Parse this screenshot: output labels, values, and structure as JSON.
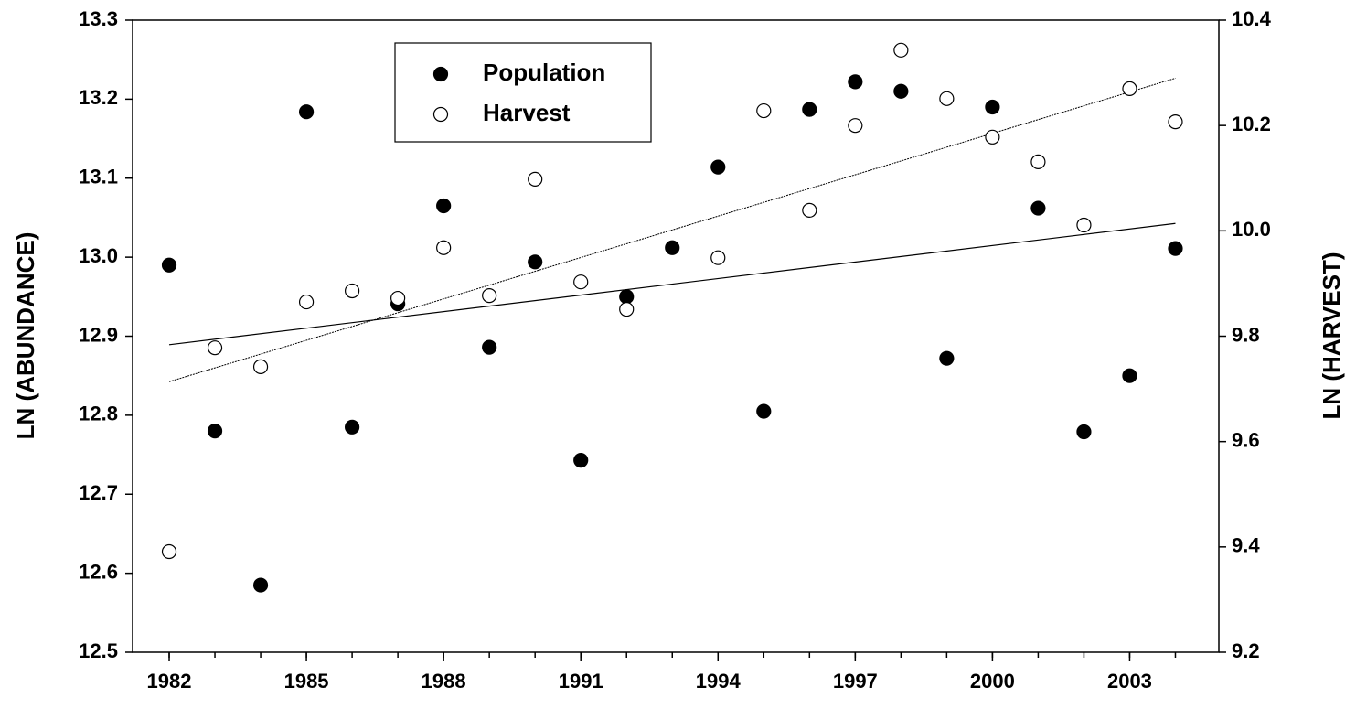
{
  "chart_data": {
    "type": "scatter",
    "x": [
      1982,
      1983,
      1984,
      1985,
      1986,
      1987,
      1988,
      1989,
      1990,
      1991,
      1992,
      1993,
      1994,
      1995,
      1996,
      1997,
      1998,
      1999,
      2000,
      2001,
      2002,
      2003,
      2004
    ],
    "series": [
      {
        "name": "Population",
        "color": "#000000",
        "fill": "#000000",
        "axis": "y",
        "values": [
          12.99,
          12.78,
          12.585,
          13.184,
          12.785,
          12.941,
          13.065,
          12.886,
          12.994,
          12.743,
          12.95,
          13.012,
          13.114,
          12.805,
          13.187,
          13.222,
          13.21,
          12.872,
          13.19,
          13.062,
          12.779,
          12.85,
          13.011
        ]
      },
      {
        "name": "Harvest",
        "color": "#000000",
        "fill": "#ffffff",
        "axis": "y2",
        "values": [
          9.391,
          9.778,
          9.742,
          9.865,
          9.886,
          9.872,
          9.968,
          9.877,
          10.098,
          9.903,
          9.851,
          null,
          9.949,
          10.228,
          10.039,
          10.2,
          10.343,
          10.251,
          10.178,
          10.131,
          10.011,
          10.27,
          10.207
        ]
      }
    ],
    "trend_lines": true,
    "ylabel": "LN (ABUNDANCE)",
    "y2label": "LN (HARVEST)",
    "xlim": [
      1981.2,
      2004.95
    ],
    "xticks": [
      1982,
      1985,
      1988,
      1991,
      1994,
      1997,
      2000,
      2003
    ],
    "ylim": [
      12.5,
      13.3
    ],
    "yticks": [
      {
        "value": 12.5,
        "label": "12.5"
      },
      {
        "value": 12.6,
        "label": "12.6"
      },
      {
        "value": 12.7,
        "label": "12.7"
      },
      {
        "value": 12.8,
        "label": "12.8"
      },
      {
        "value": 12.9,
        "label": "12.9"
      },
      {
        "value": 13.0,
        "label": "13.0"
      },
      {
        "value": 13.1,
        "label": "13.1"
      },
      {
        "value": 13.2,
        "label": "13.2"
      },
      {
        "value": 13.3,
        "label": "13.3"
      }
    ],
    "y2lim": [
      9.2,
      10.4
    ],
    "y2ticks": [
      {
        "value": 9.2,
        "label": "9.2"
      },
      {
        "value": 9.4,
        "label": "9.4"
      },
      {
        "value": 9.6,
        "label": "9.6"
      },
      {
        "value": 9.8,
        "label": "9.8"
      },
      {
        "value": 10.0,
        "label": "10.0"
      },
      {
        "value": 10.2,
        "label": "10.2"
      },
      {
        "value": 10.4,
        "label": "10.4"
      }
    ],
    "legend": "upper-left"
  }
}
